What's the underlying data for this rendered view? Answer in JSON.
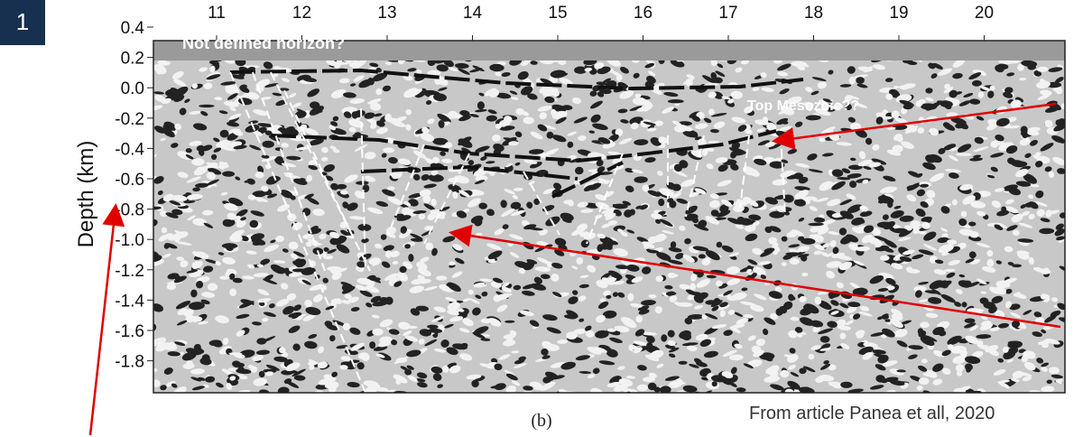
{
  "badge": "1",
  "figure": {
    "x_ticks": [
      "11",
      "12",
      "13",
      "14",
      "15",
      "16",
      "17",
      "18",
      "19",
      "20"
    ],
    "y_ticks": [
      "0.4",
      "0.2",
      "0.0",
      "-0.2",
      "-0.4",
      "-0.6",
      "-0.8",
      "-1.0",
      "-1.2",
      "-1.4",
      "-1.6",
      "-1.8"
    ],
    "y_label": "Depth (km)",
    "annotations": [
      "Not defined horizon?",
      "Top Mesozoic??"
    ],
    "caption": "(b)"
  },
  "source": "From article Panea et all, 2020"
}
